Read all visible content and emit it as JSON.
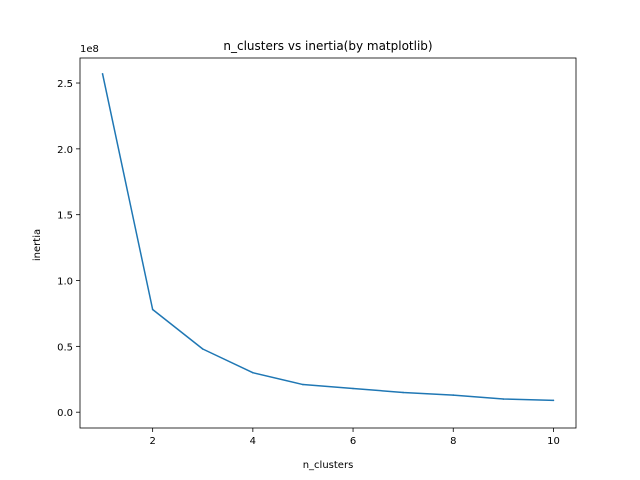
{
  "chart_data": {
    "type": "line",
    "title": "n_clusters vs inertia(by matplotlib)",
    "xlabel": "n_clusters",
    "ylabel": "inertia",
    "offset_label": "1e8",
    "xlim": [
      0.55,
      10.45
    ],
    "ylim": [
      -0.12,
      2.69
    ],
    "xticks": [
      2,
      4,
      6,
      8,
      10
    ],
    "xtick_labels": [
      "2",
      "4",
      "6",
      "8",
      "10"
    ],
    "yticks": [
      0.0,
      0.5,
      1.0,
      1.5,
      2.0,
      2.5
    ],
    "ytick_labels": [
      "0.0",
      "0.5",
      "1.0",
      "1.5",
      "2.0",
      "2.5"
    ],
    "grid": false,
    "series": [
      {
        "color": "#1f77b4",
        "x": [
          1,
          2,
          3,
          4,
          5,
          6,
          7,
          8,
          9,
          10
        ],
        "y": [
          2.57,
          0.78,
          0.48,
          0.3,
          0.21,
          0.18,
          0.15,
          0.13,
          0.1,
          0.09
        ]
      }
    ]
  }
}
